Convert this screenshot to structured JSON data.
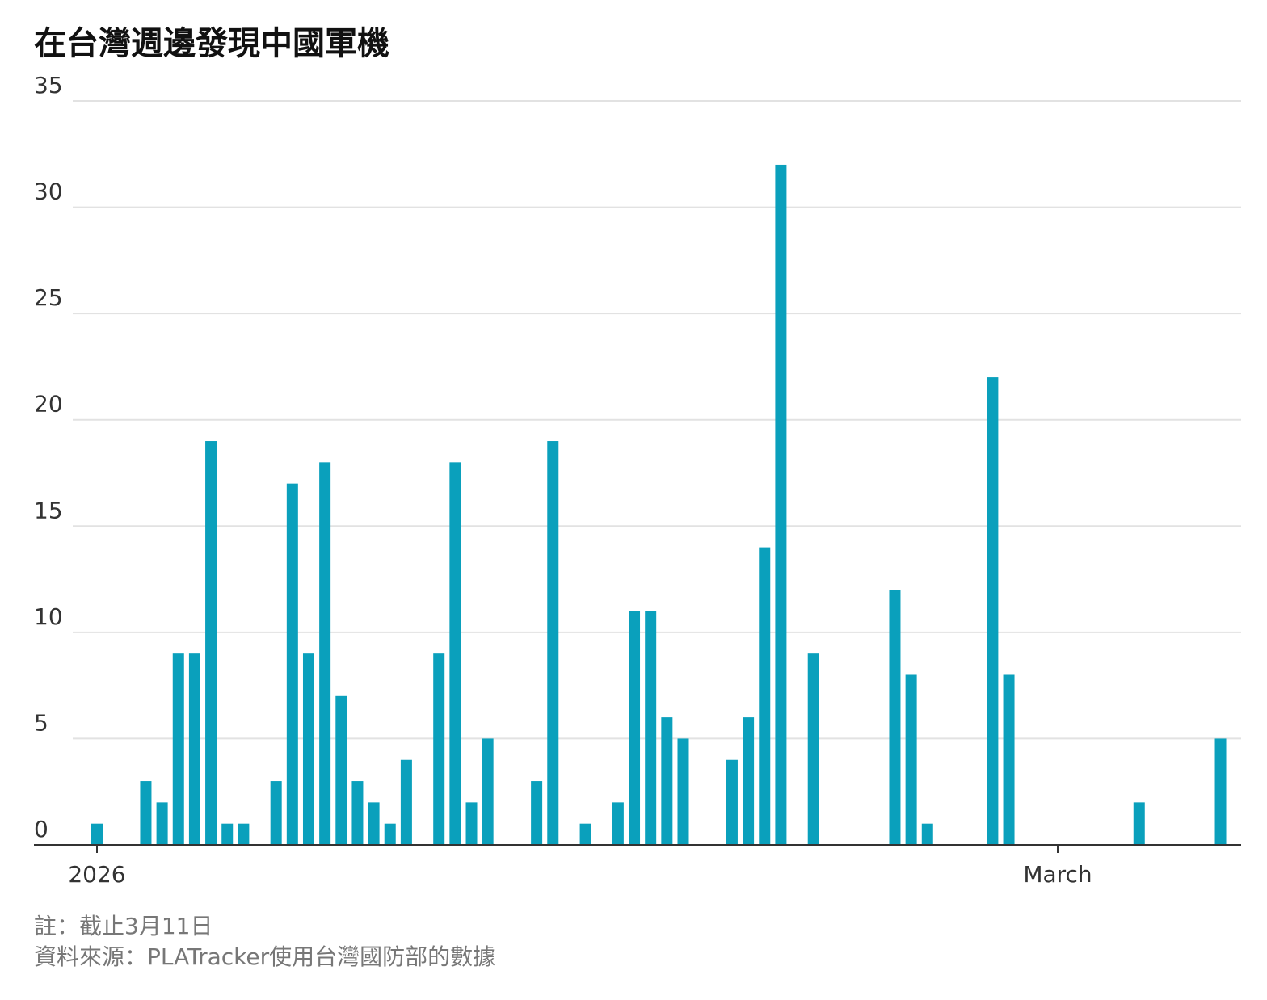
{
  "chart_data": {
    "type": "bar",
    "title": "在台灣週邊發現中國軍機",
    "notes": [
      "註：截止3月11日",
      "資料來源：PLATracker使用台灣國防部的數據"
    ],
    "categories": [
      "2026",
      null,
      null,
      null,
      null,
      null,
      null,
      null,
      null,
      null,
      null,
      null,
      null,
      null,
      null,
      null,
      null,
      null,
      null,
      null,
      null,
      null,
      null,
      null,
      null,
      null,
      null,
      null,
      null,
      null,
      null,
      null,
      null,
      null,
      null,
      null,
      null,
      null,
      null,
      null,
      null,
      null,
      null,
      null,
      null,
      null,
      null,
      null,
      null,
      null,
      null,
      null,
      null,
      null,
      null,
      null,
      null,
      null,
      null,
      "March",
      null,
      null,
      null,
      null,
      null,
      null,
      null,
      null,
      null,
      null
    ],
    "values": [
      1,
      0,
      0,
      3,
      2,
      9,
      9,
      19,
      1,
      1,
      0,
      3,
      17,
      9,
      18,
      7,
      3,
      2,
      1,
      4,
      0,
      9,
      18,
      2,
      5,
      0,
      0,
      3,
      19,
      0,
      1,
      0,
      2,
      11,
      11,
      6,
      5,
      0,
      0,
      4,
      6,
      14,
      32,
      0,
      9,
      0,
      0,
      0,
      0,
      12,
      8,
      1,
      0,
      0,
      0,
      22,
      8,
      0,
      0,
      0,
      0,
      0,
      0,
      0,
      2,
      0,
      0,
      0,
      0,
      5
    ],
    "color": "#0aa0bc",
    "ylim": [
      0,
      35
    ],
    "yticks": [
      0,
      5,
      10,
      15,
      20,
      25,
      30,
      35
    ],
    "grid": true
  }
}
